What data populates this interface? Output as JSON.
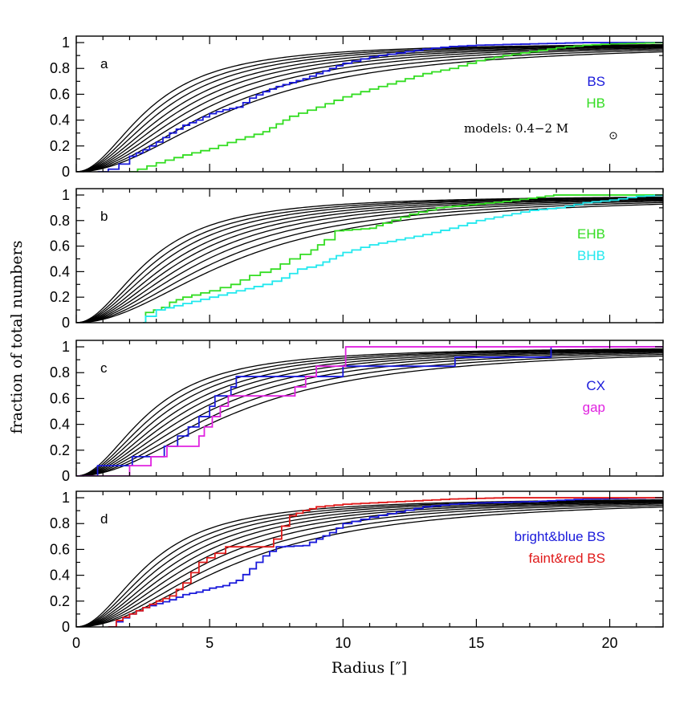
{
  "chart_data": {
    "type": "line",
    "xlabel": "Radius [″]",
    "ylabel": "fraction of total numbers",
    "xlim": [
      0,
      22
    ],
    "ylim": [
      0,
      1.05
    ],
    "x_ticks": [
      "0",
      "5",
      "10",
      "15",
      "20"
    ],
    "x_tick_values": [
      0,
      5,
      10,
      15,
      20
    ],
    "y_ticks": [
      "0",
      "0.2",
      "0.4",
      "0.6",
      "0.8",
      "1"
    ],
    "y_tick_values": [
      0,
      0.2,
      0.4,
      0.6,
      0.8,
      1
    ],
    "model_curves_note": "models: 0.4−2 M",
    "model_curve_scale_radii": [
      2.8,
      3.1,
      3.4,
      3.75,
      4.1,
      4.5,
      4.95,
      5.5,
      6.1
    ],
    "colors": {
      "black": "#000000",
      "blue": "#1a1adb",
      "green": "#33dd22",
      "cyan": "#22e8ee",
      "magenta": "#e022e0",
      "red": "#e01a1a"
    },
    "panels": [
      {
        "tag": "a",
        "note": true,
        "series": [
          {
            "name": "BS",
            "color": "#1a1adb",
            "points": [
              [
                0.8,
                0
              ],
              [
                1.2,
                0.02
              ],
              [
                1.6,
                0.06
              ],
              [
                2,
                0.12
              ],
              [
                2.5,
                0.17
              ],
              [
                3,
                0.23
              ],
              [
                3.5,
                0.3
              ],
              [
                4,
                0.36
              ],
              [
                4.5,
                0.4
              ],
              [
                5,
                0.45
              ],
              [
                5.5,
                0.48
              ],
              [
                6,
                0.5
              ],
              [
                6.5,
                0.57
              ],
              [
                7,
                0.62
              ],
              [
                7.5,
                0.66
              ],
              [
                8,
                0.69
              ],
              [
                8.5,
                0.72
              ],
              [
                9,
                0.76
              ],
              [
                9.5,
                0.8
              ],
              [
                10,
                0.84
              ],
              [
                11,
                0.89
              ],
              [
                12,
                0.92
              ],
              [
                13,
                0.95
              ],
              [
                14,
                0.97
              ],
              [
                15,
                0.98
              ],
              [
                17,
                0.99
              ],
              [
                19,
                1
              ],
              [
                22,
                1
              ]
            ]
          },
          {
            "name": "HB",
            "color": "#33dd22",
            "points": [
              [
                2,
                0
              ],
              [
                2.3,
                0.02
              ],
              [
                3,
                0.07
              ],
              [
                4,
                0.13
              ],
              [
                5,
                0.18
              ],
              [
                6,
                0.25
              ],
              [
                7,
                0.31
              ],
              [
                7.5,
                0.37
              ],
              [
                8,
                0.43
              ],
              [
                9,
                0.5
              ],
              [
                10,
                0.58
              ],
              [
                11,
                0.64
              ],
              [
                12,
                0.7
              ],
              [
                13,
                0.76
              ],
              [
                14,
                0.8
              ],
              [
                15,
                0.86
              ],
              [
                16,
                0.9
              ],
              [
                17,
                0.93
              ],
              [
                18,
                0.96
              ],
              [
                19,
                0.98
              ],
              [
                20,
                0.99
              ],
              [
                22,
                1
              ]
            ]
          }
        ]
      },
      {
        "tag": "b",
        "note": false,
        "series": [
          {
            "name": "EHB",
            "color": "#33dd22",
            "points": [
              [
                2.5,
                0
              ],
              [
                2.6,
                0.08
              ],
              [
                3.2,
                0.12
              ],
              [
                3.5,
                0.16
              ],
              [
                4,
                0.2
              ],
              [
                5,
                0.25
              ],
              [
                5.8,
                0.3
              ],
              [
                6.5,
                0.37
              ],
              [
                7.3,
                0.42
              ],
              [
                8,
                0.5
              ],
              [
                8.8,
                0.57
              ],
              [
                9.3,
                0.65
              ],
              [
                9.7,
                0.72
              ],
              [
                11,
                0.74
              ],
              [
                11.5,
                0.78
              ],
              [
                12.5,
                0.85
              ],
              [
                13.5,
                0.9
              ],
              [
                15,
                0.93
              ],
              [
                16,
                0.95
              ],
              [
                17.9,
                1
              ],
              [
                22,
                1
              ]
            ]
          },
          {
            "name": "BHB",
            "color": "#22e8ee",
            "points": [
              [
                2.5,
                0
              ],
              [
                2.6,
                0.05
              ],
              [
                3,
                0.1
              ],
              [
                4,
                0.15
              ],
              [
                5,
                0.2
              ],
              [
                6,
                0.25
              ],
              [
                7,
                0.3
              ],
              [
                7.7,
                0.35
              ],
              [
                8.3,
                0.42
              ],
              [
                9,
                0.45
              ],
              [
                9.5,
                0.5
              ],
              [
                10,
                0.55
              ],
              [
                11,
                0.61
              ],
              [
                12,
                0.65
              ],
              [
                13,
                0.69
              ],
              [
                14,
                0.74
              ],
              [
                15,
                0.8
              ],
              [
                16,
                0.84
              ],
              [
                17,
                0.88
              ],
              [
                18,
                0.9
              ],
              [
                19,
                0.94
              ],
              [
                20,
                0.96
              ],
              [
                21,
                0.99
              ],
              [
                22,
                1
              ]
            ]
          }
        ]
      },
      {
        "tag": "c",
        "note": false,
        "series": [
          {
            "name": "CX",
            "color": "#1a1adb",
            "points": [
              [
                0,
                0
              ],
              [
                0.8,
                0
              ],
              [
                0.8,
                0.08
              ],
              [
                2.1,
                0.08
              ],
              [
                2.1,
                0.15
              ],
              [
                3.3,
                0.15
              ],
              [
                3.3,
                0.23
              ],
              [
                3.8,
                0.23
              ],
              [
                3.8,
                0.31
              ],
              [
                4.2,
                0.31
              ],
              [
                4.2,
                0.38
              ],
              [
                4.6,
                0.38
              ],
              [
                4.6,
                0.46
              ],
              [
                5,
                0.46
              ],
              [
                5,
                0.54
              ],
              [
                5.2,
                0.54
              ],
              [
                5.2,
                0.62
              ],
              [
                5.8,
                0.62
              ],
              [
                5.8,
                0.69
              ],
              [
                6,
                0.69
              ],
              [
                6,
                0.77
              ],
              [
                10,
                0.77
              ],
              [
                10,
                0.85
              ],
              [
                14.2,
                0.85
              ],
              [
                14.2,
                0.92
              ],
              [
                17.8,
                0.92
              ],
              [
                17.8,
                1
              ],
              [
                22,
                1
              ]
            ]
          },
          {
            "name": "gap",
            "color": "#e022e0",
            "points": [
              [
                0,
                0
              ],
              [
                2,
                0
              ],
              [
                2,
                0.08
              ],
              [
                2.8,
                0.08
              ],
              [
                2.8,
                0.15
              ],
              [
                3.4,
                0.15
              ],
              [
                3.4,
                0.23
              ],
              [
                4.6,
                0.23
              ],
              [
                4.6,
                0.31
              ],
              [
                4.8,
                0.31
              ],
              [
                4.8,
                0.38
              ],
              [
                5.1,
                0.38
              ],
              [
                5.1,
                0.46
              ],
              [
                5.4,
                0.46
              ],
              [
                5.4,
                0.54
              ],
              [
                5.7,
                0.54
              ],
              [
                5.7,
                0.62
              ],
              [
                8.2,
                0.62
              ],
              [
                8.2,
                0.69
              ],
              [
                8.6,
                0.69
              ],
              [
                8.6,
                0.77
              ],
              [
                9,
                0.77
              ],
              [
                9,
                0.85
              ],
              [
                10.1,
                0.85
              ],
              [
                10.1,
                1
              ],
              [
                22,
                1
              ]
            ]
          }
        ]
      },
      {
        "tag": "d",
        "note": false,
        "series": [
          {
            "name": "bright&blue BS",
            "color": "#1a1adb",
            "points": [
              [
                1.2,
                0
              ],
              [
                1.5,
                0.04
              ],
              [
                2,
                0.1
              ],
              [
                2.5,
                0.15
              ],
              [
                3,
                0.18
              ],
              [
                3.5,
                0.21
              ],
              [
                4,
                0.25
              ],
              [
                4.5,
                0.27
              ],
              [
                5,
                0.3
              ],
              [
                5.5,
                0.32
              ],
              [
                6,
                0.36
              ],
              [
                6.5,
                0.45
              ],
              [
                7,
                0.55
              ],
              [
                7.5,
                0.62
              ],
              [
                8.5,
                0.63
              ],
              [
                9,
                0.68
              ],
              [
                9.5,
                0.73
              ],
              [
                10,
                0.8
              ],
              [
                11,
                0.85
              ],
              [
                12,
                0.89
              ],
              [
                13,
                0.93
              ],
              [
                14,
                0.95
              ],
              [
                15,
                0.96
              ],
              [
                17,
                0.97
              ],
              [
                19,
                0.99
              ],
              [
                22,
                1
              ]
            ]
          },
          {
            "name": "faint&red BS",
            "color": "#e01a1a",
            "points": [
              [
                1.2,
                0
              ],
              [
                1.5,
                0.05
              ],
              [
                2,
                0.1
              ],
              [
                2.5,
                0.15
              ],
              [
                3,
                0.2
              ],
              [
                3.5,
                0.24
              ],
              [
                4,
                0.34
              ],
              [
                4.3,
                0.42
              ],
              [
                4.6,
                0.5
              ],
              [
                5.2,
                0.57
              ],
              [
                5.6,
                0.62
              ],
              [
                7,
                0.62
              ],
              [
                7.4,
                0.68
              ],
              [
                7.7,
                0.78
              ],
              [
                8,
                0.86
              ],
              [
                8.5,
                0.9
              ],
              [
                9,
                0.93
              ],
              [
                10,
                0.95
              ],
              [
                12,
                0.97
              ],
              [
                14,
                0.99
              ],
              [
                16,
                1
              ],
              [
                22,
                1
              ]
            ]
          }
        ]
      }
    ]
  }
}
